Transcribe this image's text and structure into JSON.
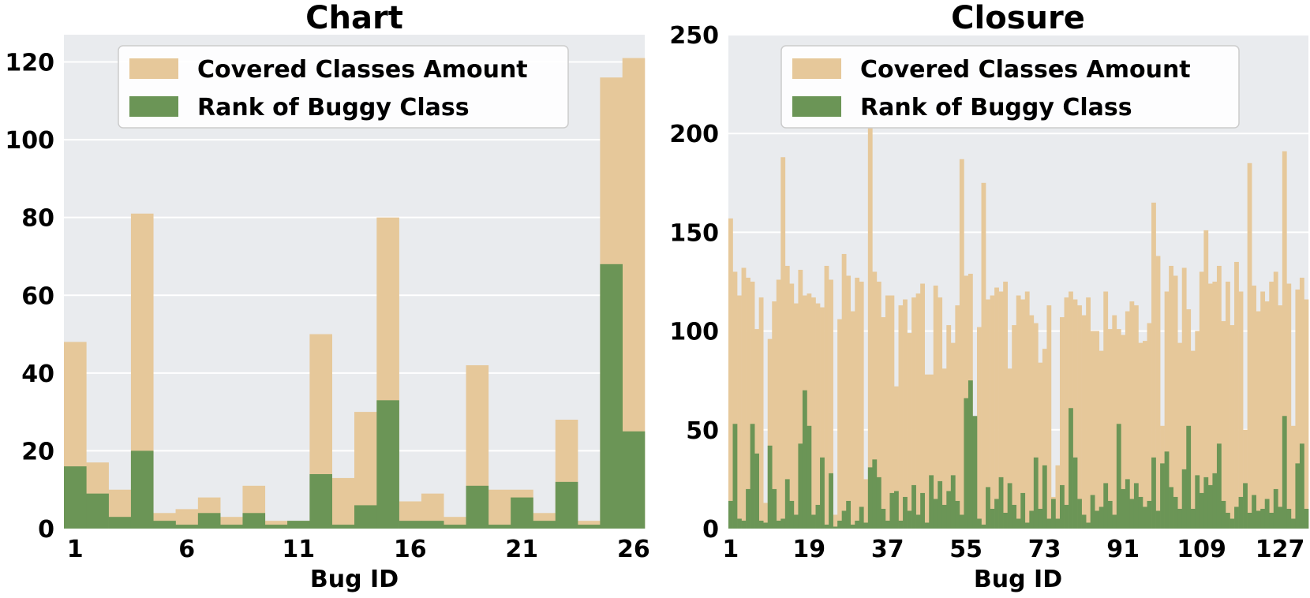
{
  "colors": {
    "covered": "#e6c89a",
    "rank": "#6b9556",
    "plot_bg": "#e9ebee",
    "grid": "#ffffff"
  },
  "legend": {
    "items": [
      {
        "label": "Covered Classes Amount",
        "color_key": "covered"
      },
      {
        "label": "Rank of Buggy Class",
        "color_key": "rank"
      }
    ],
    "placement": "top-center"
  },
  "chart_data": [
    {
      "type": "bar",
      "title": "Chart",
      "xlabel": "Bug ID",
      "ylabel": "",
      "x_ticks": [
        1,
        6,
        11,
        16,
        21,
        26
      ],
      "y_ticks": [
        0,
        20,
        40,
        60,
        80,
        100,
        120
      ],
      "ylim": [
        0,
        127
      ],
      "grid": true,
      "categories": [
        1,
        2,
        3,
        4,
        5,
        6,
        7,
        8,
        9,
        10,
        11,
        12,
        13,
        14,
        15,
        16,
        17,
        18,
        19,
        20,
        21,
        22,
        23,
        24,
        25,
        26
      ],
      "series": [
        {
          "name": "Covered Classes Amount",
          "color_key": "covered",
          "values": [
            48,
            17,
            10,
            81,
            4,
            5,
            8,
            3,
            11,
            2,
            2,
            50,
            13,
            30,
            80,
            7,
            9,
            3,
            42,
            10,
            10,
            4,
            28,
            2,
            116,
            121
          ]
        },
        {
          "name": "Rank of Buggy Class",
          "color_key": "rank",
          "values": [
            16,
            9,
            3,
            20,
            2,
            1,
            4,
            1,
            4,
            1,
            2,
            14,
            1,
            6,
            33,
            2,
            2,
            1,
            11,
            1,
            8,
            2,
            12,
            1,
            68,
            25
          ]
        }
      ]
    },
    {
      "type": "bar",
      "title": "Closure",
      "xlabel": "Bug ID",
      "ylabel": "",
      "x_ticks": [
        1,
        19,
        37,
        55,
        73,
        91,
        109,
        127
      ],
      "y_ticks": [
        0,
        50,
        100,
        150,
        200,
        250
      ],
      "ylim": [
        0,
        250
      ],
      "grid": true,
      "categories_count": 133,
      "series": [
        {
          "name": "Covered Classes Amount",
          "color_key": "covered",
          "values": [
            157,
            130,
            118,
            132,
            127,
            125,
            101,
            117,
            13,
            96,
            115,
            126,
            188,
            133,
            124,
            114,
            131,
            118,
            119,
            117,
            114,
            112,
            133,
            126,
            7,
            106,
            139,
            128,
            110,
            127,
            125,
            25,
            203,
            130,
            125,
            107,
            118,
            118,
            72,
            113,
            116,
            99,
            117,
            119,
            124,
            78,
            78,
            123,
            117,
            81,
            103,
            94,
            113,
            187,
            128,
            129,
            18,
            102,
            175,
            116,
            118,
            122,
            120,
            125,
            81,
            103,
            118,
            116,
            120,
            108,
            104,
            84,
            91,
            113,
            16,
            32,
            107,
            117,
            120,
            116,
            113,
            108,
            117,
            100,
            100,
            90,
            120,
            101,
            108,
            101,
            98,
            110,
            115,
            113,
            94,
            95,
            104,
            165,
            138,
            52,
            120,
            133,
            128,
            94,
            132,
            111,
            90,
            100,
            130,
            151,
            124,
            125,
            133,
            105,
            125,
            103,
            135,
            120,
            50,
            185,
            123,
            110,
            120,
            115,
            125,
            130,
            113,
            191,
            124,
            52,
            121,
            127,
            116
          ]
        },
        {
          "name": "Rank of Buggy Class",
          "color_key": "rank",
          "values": [
            14,
            53,
            5,
            4,
            20,
            53,
            38,
            4,
            3,
            42,
            20,
            4,
            5,
            25,
            14,
            7,
            43,
            70,
            52,
            7,
            12,
            36,
            2,
            28,
            1,
            4,
            9,
            14,
            2,
            4,
            11,
            3,
            31,
            35,
            26,
            10,
            4,
            18,
            19,
            4,
            16,
            9,
            22,
            7,
            18,
            3,
            27,
            15,
            24,
            12,
            19,
            27,
            14,
            7,
            66,
            75,
            57,
            5,
            2,
            21,
            10,
            15,
            26,
            8,
            23,
            12,
            5,
            18,
            3,
            9,
            36,
            10,
            32,
            5,
            15,
            5,
            22,
            12,
            61,
            36,
            15,
            7,
            3,
            17,
            9,
            11,
            23,
            14,
            7,
            53,
            20,
            25,
            15,
            23,
            16,
            11,
            14,
            36,
            9,
            33,
            39,
            21,
            16,
            10,
            30,
            52,
            10,
            27,
            18,
            26,
            22,
            28,
            43,
            14,
            8,
            5,
            11,
            16,
            23,
            8,
            17,
            9,
            10,
            15,
            8,
            20,
            11,
            57,
            10,
            5,
            33,
            43,
            10
          ]
        }
      ]
    }
  ]
}
